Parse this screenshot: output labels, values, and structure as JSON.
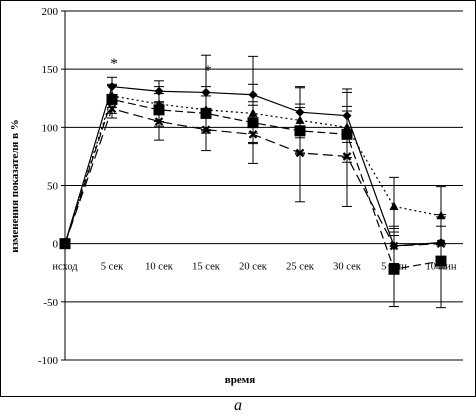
{
  "caption": "а",
  "chart_data": {
    "type": "line",
    "title": "",
    "xlabel": "время",
    "ylabel": "изменения показателя в %",
    "categories": [
      "исход",
      "5 сек",
      "10 сек",
      "15 сек",
      "20 сек",
      "25 сек",
      "30 сек",
      "5 мин",
      "10 мин"
    ],
    "ylim": [
      -100,
      200
    ],
    "yticks": [
      -100,
      -50,
      0,
      50,
      100,
      150,
      200
    ],
    "grid": "horizontal",
    "legend": "none",
    "annotations": [
      {
        "text": "*",
        "category": "5 сек",
        "y": 158
      },
      {
        "text": "*",
        "category": "15 сек",
        "y": 152
      }
    ],
    "series": [
      {
        "line": "solid",
        "marker": "diamond",
        "values": [
          0,
          135,
          131,
          130,
          128,
          113,
          110,
          -2,
          1
        ],
        "err": [
          0,
          8,
          9,
          32,
          33,
          22,
          23,
          17,
          22
        ]
      },
      {
        "line": "dotted",
        "marker": "triangle",
        "values": [
          0,
          127,
          120,
          115,
          112,
          106,
          100,
          32,
          24
        ],
        "err": [
          0,
          10,
          15,
          20,
          25,
          28,
          30,
          25,
          25
        ]
      },
      {
        "line": "dashed",
        "marker": "square",
        "values": [
          0,
          124,
          115,
          112,
          104,
          97,
          94,
          -22,
          -15
        ],
        "err": [
          0,
          12,
          14,
          15,
          18,
          20,
          20,
          32,
          40
        ]
      },
      {
        "line": "longdash",
        "marker": "cross",
        "values": [
          0,
          116,
          105,
          98,
          94,
          78,
          75,
          -2,
          0
        ],
        "err": [
          0,
          8,
          16,
          18,
          25,
          42,
          43,
          15,
          15
        ]
      }
    ]
  }
}
